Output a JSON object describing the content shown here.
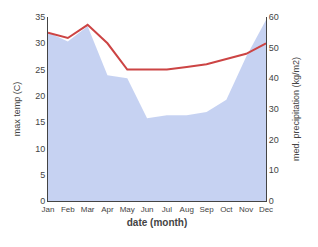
{
  "chart_data": {
    "type": "line",
    "categories": [
      "Jan",
      "Feb",
      "Mar",
      "Apr",
      "May",
      "Jun",
      "Jul",
      "Aug",
      "Sep",
      "Oct",
      "Nov",
      "Dec"
    ],
    "series": [
      {
        "type": "area",
        "color": "#b3c3ee",
        "axis": "y2",
        "values": [
          55,
          52,
          57,
          41,
          40,
          27,
          28,
          28,
          29,
          33,
          47,
          59
        ]
      },
      {
        "type": "line",
        "color": "#cc4444",
        "values": [
          32,
          31,
          33.5,
          30,
          25,
          25,
          25,
          25.5,
          26,
          27,
          28,
          30
        ]
      }
    ],
    "xlabel": "date (month)",
    "ylabel": "max temp (C)",
    "y2label": "med. precipitation (kg/m2)",
    "ylim": [
      0,
      35
    ],
    "yticks": [
      0,
      5,
      10,
      15,
      20,
      25,
      30,
      35
    ],
    "y2lim": [
      0,
      60
    ],
    "y2ticks": [
      0,
      10,
      20,
      30,
      40,
      50,
      60
    ],
    "grid": false
  }
}
